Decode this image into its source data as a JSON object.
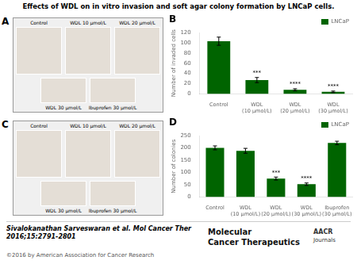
{
  "title": "Effects of WDL on in vitro invasion and soft agar colony formation by LNCaP cells.",
  "annotations": [
    "A",
    "Control",
    "WDL 10 μmol/L",
    "WDL 20 μmol/L",
    "WDL 30 μmol/L",
    "Ibuprofen 30 μmol/L",
    "C",
    "Control",
    "WDL 10 μmol/L",
    "WDL 20 μmol/L",
    "WDL 30 μmol/L",
    "Ibuprofen 30 μmol/L",
    "Sivalokanathan Sarveswaran et al. Mol Cancer Ther\n2016;15:2791-2801",
    "©2016 by American Association for Cancer Research",
    "Molecular\nCancer Therapeutics",
    "AACR",
    "Journals"
  ],
  "chart_data": [
    {
      "type": "bar",
      "categories": [
        "Control",
        "WDL\n(10 μmol/L)",
        "WDL\n(20 μmol/L)",
        "WDL\n(30 μmol/L)"
      ],
      "series": [
        {
          "name": "LNCaP",
          "color": "#006400",
          "values": [
            103,
            27,
            8,
            4
          ],
          "errors": [
            8,
            5,
            2,
            1.5
          ]
        }
      ],
      "ylabel": "Number of invaded cells",
      "ylim": [
        0,
        120
      ],
      "yticks": [
        0,
        20,
        40,
        60,
        80,
        100,
        120
      ],
      "grid": false,
      "legend": "upper right",
      "annotations": [
        {
          "text": "B"
        },
        {
          "text": "***",
          "category": "WDL\n(10 μmol/L)"
        },
        {
          "text": "****",
          "category": "WDL\n(20 μmol/L)"
        },
        {
          "text": "****",
          "category": "WDL\n(30 μmol/L)"
        }
      ]
    },
    {
      "type": "bar",
      "categories": [
        "Control",
        "WDL\n(10 μmol/L)",
        "WDL\n(20 μmol/L)",
        "WDL\n(30 μmol/L)",
        "Ibuprofen\n(30 μmol/L)"
      ],
      "series": [
        {
          "name": "LNCaP",
          "color": "#006400",
          "values": [
            200,
            188,
            75,
            52,
            220
          ],
          "errors": [
            8,
            10,
            6,
            5,
            7
          ]
        }
      ],
      "ylabel": "Number of colonies",
      "ylim": [
        0,
        250
      ],
      "yticks": [
        0,
        50,
        100,
        150,
        200,
        250
      ],
      "grid": false,
      "legend": "upper right",
      "annotations": [
        {
          "text": "D"
        },
        {
          "text": "***",
          "category": "WDL\n(20 μmol/L)"
        },
        {
          "text": "****",
          "category": "WDL\n(30 μmol/L)"
        }
      ]
    }
  ]
}
